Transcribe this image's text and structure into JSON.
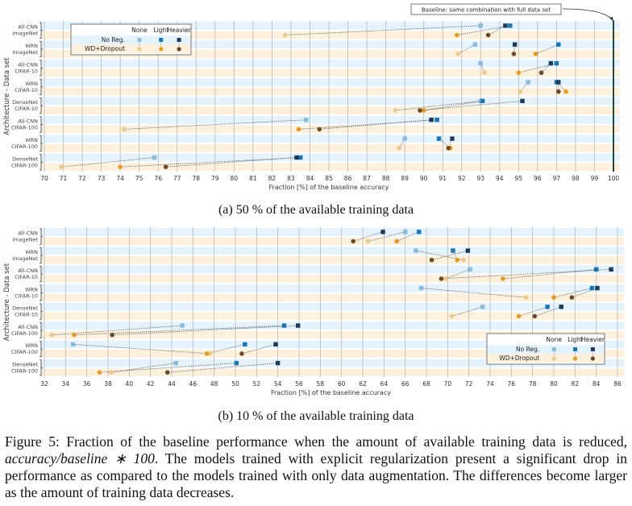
{
  "chart_data": [
    {
      "type": "scatter",
      "subcaption": "(a) 50 % of the available training data",
      "xlabel": "Fraction [%] of the baseline accuracy",
      "ylabel": "Architecture - Data set",
      "xlim": [
        70,
        100
      ],
      "xticks": [
        70,
        71,
        72,
        73,
        74,
        75,
        76,
        77,
        78,
        79,
        80,
        81,
        82,
        83,
        84,
        85,
        86,
        87,
        88,
        89,
        90,
        91,
        92,
        93,
        94,
        95,
        96,
        97,
        98,
        99,
        100
      ],
      "grid": true,
      "legend_placement": "top-left",
      "annotation": "Baseline: same combination with full data set",
      "baseline": 100,
      "categories": [
        "All-CNN\nImageNet",
        "WRN\nImageNet",
        "All-CNN\nCIFAR-10",
        "WRN\nCIFAR-10",
        "DenseNet\nCIFAR-10",
        "All-CNN\nCIFAR-100",
        "WRN\nCIFAR-100",
        "DenseNet\nCIFAR-100"
      ],
      "series": [
        {
          "name": "No Reg.",
          "aug": "None",
          "values": [
            93.0,
            92.7,
            93.0,
            95.5,
            93.0,
            83.8,
            89.0,
            75.8
          ]
        },
        {
          "name": "No Reg.",
          "aug": "Light",
          "values": [
            94.55,
            97.1,
            97.0,
            97.0,
            93.1,
            90.7,
            90.8,
            83.5
          ]
        },
        {
          "name": "No Reg.",
          "aug": "Heavier",
          "values": [
            94.3,
            94.8,
            96.7,
            97.1,
            95.2,
            90.4,
            91.5,
            83.3
          ]
        },
        {
          "name": "WD+Dropout",
          "aug": "None",
          "values": [
            82.7,
            91.8,
            93.2,
            95.1,
            88.5,
            74.2,
            88.7,
            70.9
          ]
        },
        {
          "name": "WD+Dropout",
          "aug": "Light",
          "values": [
            91.75,
            95.9,
            95.0,
            97.5,
            90.0,
            83.4,
            91.4,
            74.0
          ]
        },
        {
          "name": "WD+Dropout",
          "aug": "Heavier",
          "values": [
            93.4,
            94.75,
            96.2,
            97.1,
            89.8,
            84.5,
            91.3,
            76.4
          ]
        }
      ]
    },
    {
      "type": "scatter",
      "subcaption": "(b) 10 % of the available training data",
      "xlabel": "Fraction [%] of the baseline accuracy",
      "ylabel": "Architecture - Data set",
      "xlim": [
        32,
        86
      ],
      "xticks": [
        32,
        34,
        36,
        38,
        40,
        42,
        44,
        46,
        48,
        50,
        52,
        54,
        56,
        58,
        60,
        62,
        64,
        66,
        68,
        70,
        72,
        74,
        76,
        78,
        80,
        82,
        84,
        86
      ],
      "grid": true,
      "legend_placement": "bottom-right",
      "categories": [
        "All-CNN\nImageNet",
        "WRN\nImageNet",
        "All-CNN\nCIFAR-10",
        "WRN\nCIFAR-10",
        "DenseNet\nCIFAR-10",
        "All-CNN\nCIFAR-100",
        "WRN\nCIFAR-100",
        "DenseNet\nCIFAR-100"
      ],
      "series": [
        {
          "name": "No Reg.",
          "aug": "None",
          "values": [
            66.0,
            67.0,
            72.1,
            67.5,
            73.3,
            45.0,
            34.7,
            44.4
          ]
        },
        {
          "name": "No Reg.",
          "aug": "Light",
          "values": [
            67.3,
            70.5,
            84.0,
            83.6,
            79.4,
            54.6,
            50.9,
            50.1
          ]
        },
        {
          "name": "No Reg.",
          "aug": "Heavier",
          "values": [
            63.9,
            71.9,
            85.4,
            84.1,
            80.7,
            55.9,
            53.8,
            54.0
          ]
        },
        {
          "name": "WD+Dropout",
          "aug": "None",
          "values": [
            62.5,
            71.5,
            69.8,
            77.4,
            70.4,
            32.7,
            47.6,
            38.3
          ]
        },
        {
          "name": "WD+Dropout",
          "aug": "Light",
          "values": [
            65.2,
            70.9,
            75.2,
            80.0,
            76.7,
            34.8,
            47.3,
            37.2
          ]
        },
        {
          "name": "WD+Dropout",
          "aug": "Heavier",
          "values": [
            61.1,
            68.5,
            69.4,
            81.7,
            78.2,
            38.4,
            50.6,
            43.6
          ]
        }
      ]
    }
  ],
  "legend": {
    "cols": [
      "None",
      "Light",
      "Heavier"
    ],
    "rows": [
      "No Reg.",
      "WD+Dropout"
    ]
  },
  "colors": {
    "noreg": [
      "#8dbad8",
      "#1f74ad",
      "#1c3b58"
    ],
    "wd": [
      "#e9c98f",
      "#e09d2c",
      "#6a4a28"
    ],
    "band_blue": "#e4f3fd",
    "band_orange": "#fdf1de",
    "baseline": "#1e4a42"
  },
  "caption": {
    "label": "Figure 5: Fraction of the baseline performance when the amount of available training data is reduced,",
    "formula": "accuracy/baseline ∗ 100",
    "rest": ". The models trained with explicit regularization present a significant drop in performance as compared to the models trained with only data augmentation. The differences become larger as the amount of training data decreases."
  }
}
